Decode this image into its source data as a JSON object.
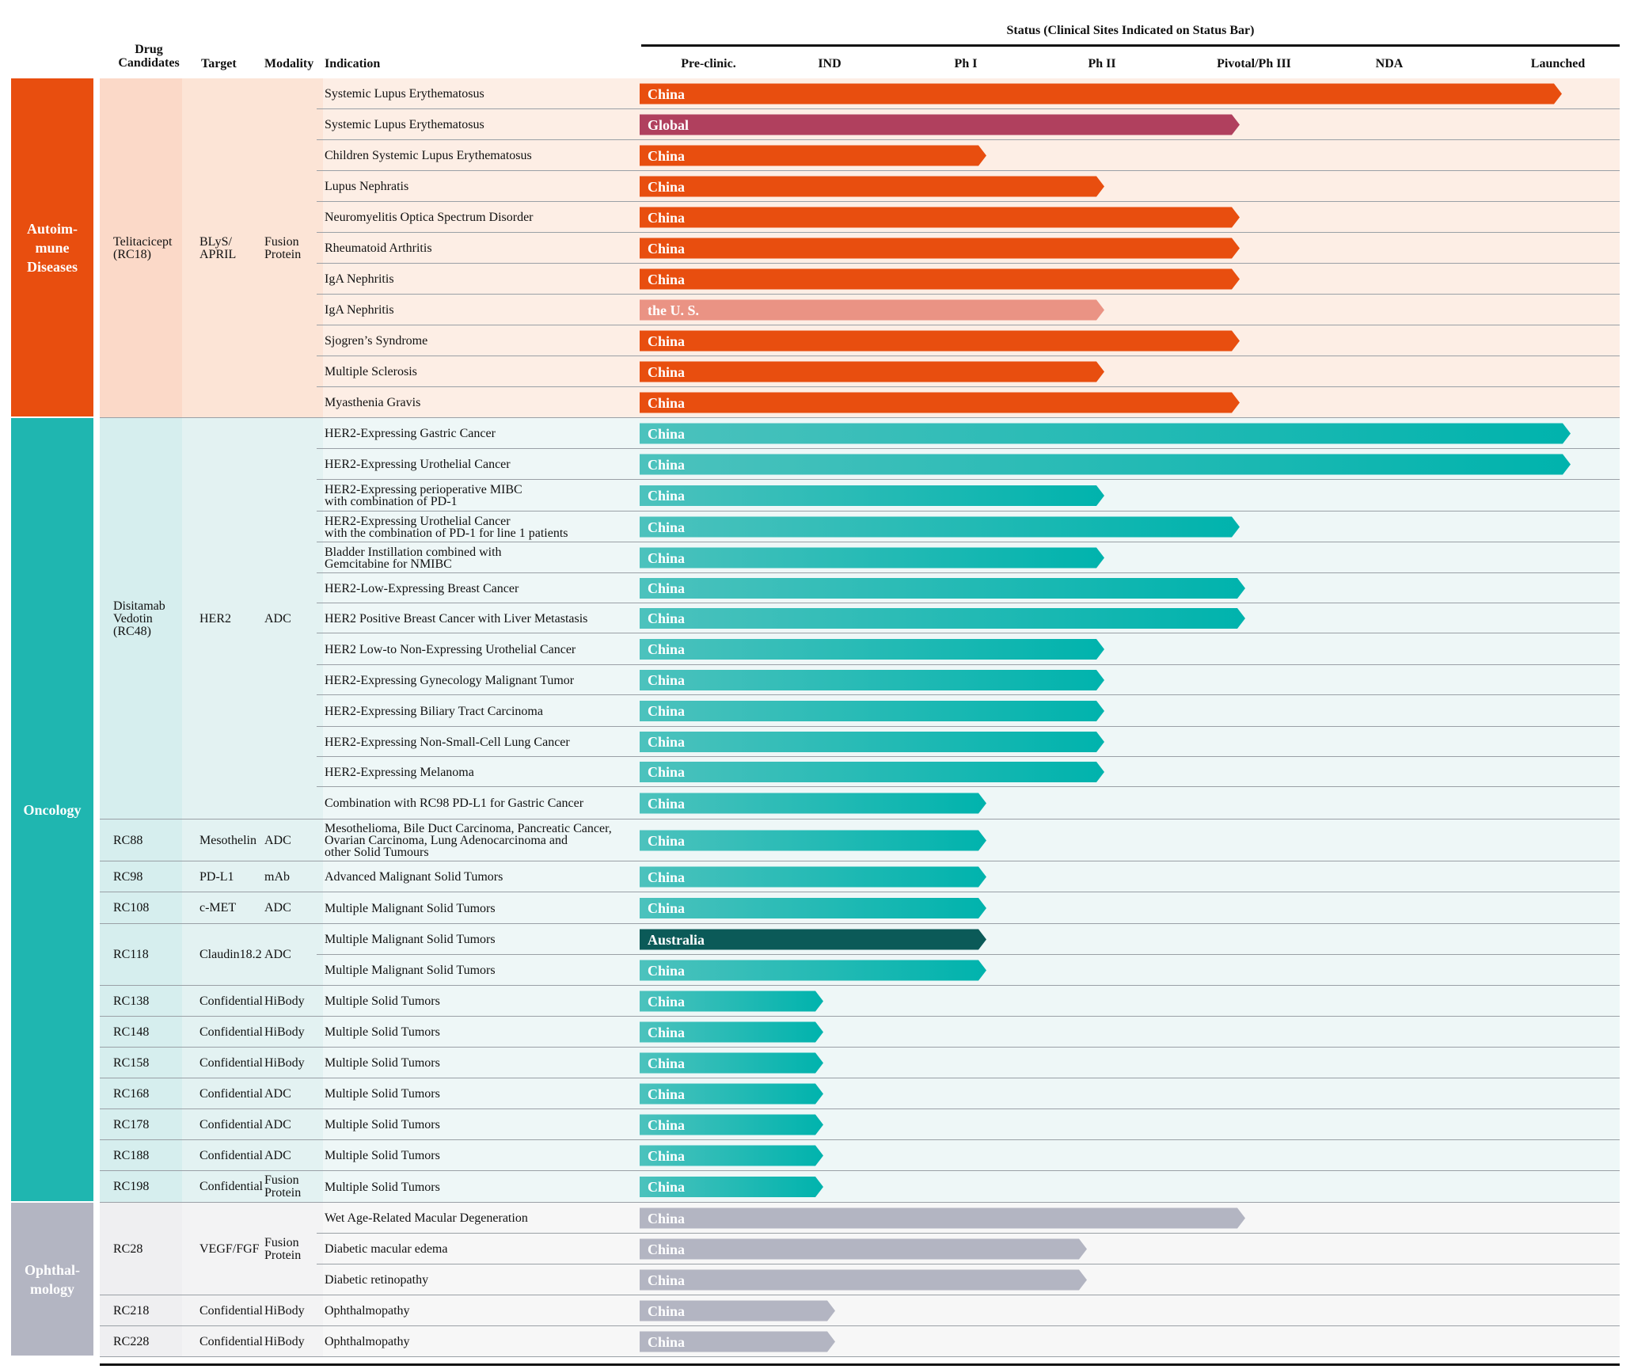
{
  "header": {
    "status_title": "Status (Clinical Sites Indicated on Status Bar)",
    "col_drug": "Drug\nCandidates",
    "col_target": "Target",
    "col_modality": "Modality",
    "col_indication": "Indication",
    "stages": [
      "Pre-clinic.",
      "IND",
      "Ph I",
      "Ph II",
      "Pivotal/Ph III",
      "NDA",
      "Launched"
    ]
  },
  "categories": [
    {
      "name": "Autoim-\nmune\nDiseases",
      "color": "#e84e0f",
      "band_color": "#fdeee5",
      "col_color": "#fbd9c8"
    },
    {
      "name": "Oncology",
      "color": "#1fb6b0",
      "band_color": "#eef7f7",
      "col_color": "#d6eeee"
    },
    {
      "name": "Ophthal-\nmology",
      "color": "#b3b5c2",
      "band_color": "#f7f7f7",
      "col_color": "#efeff1"
    }
  ],
  "drug_groups": [
    {
      "category": 0,
      "drug": "Telitacicept\n(RC18)",
      "target": "BLyS/\nAPRIL",
      "modality": "Fusion\nProtein",
      "rows": 11
    },
    {
      "category": 1,
      "drug": "Disitamab\nVedotin\n(RC48)",
      "target": "HER2",
      "modality": "ADC",
      "rows": 13
    },
    {
      "category": 1,
      "drug": "RC88",
      "target": "Mesothelin",
      "modality": "ADC",
      "rows": 1
    },
    {
      "category": 1,
      "drug": "RC98",
      "target": "PD-L1",
      "modality": "mAb",
      "rows": 1
    },
    {
      "category": 1,
      "drug": "RC108",
      "target": "c-MET",
      "modality": "ADC",
      "rows": 1
    },
    {
      "category": 1,
      "drug": "RC118",
      "target": "Claudin18.2",
      "modality": "ADC",
      "rows": 2
    },
    {
      "category": 1,
      "drug": "RC138",
      "target": "Confidential",
      "modality": "HiBody",
      "rows": 1
    },
    {
      "category": 1,
      "drug": "RC148",
      "target": "Confidential",
      "modality": "HiBody",
      "rows": 1
    },
    {
      "category": 1,
      "drug": "RC158",
      "target": "Confidential",
      "modality": "HiBody",
      "rows": 1
    },
    {
      "category": 1,
      "drug": "RC168",
      "target": "Confidential",
      "modality": "ADC",
      "rows": 1
    },
    {
      "category": 1,
      "drug": "RC178",
      "target": "Confidential",
      "modality": "ADC",
      "rows": 1
    },
    {
      "category": 1,
      "drug": "RC188",
      "target": "Confidential",
      "modality": "ADC",
      "rows": 1
    },
    {
      "category": 1,
      "drug": "RC198",
      "target": "Confidential",
      "modality": "Fusion\nProtein",
      "rows": 1
    },
    {
      "category": 2,
      "drug": "RC28",
      "target": "VEGF/FGF",
      "modality": "Fusion\nProtein",
      "rows": 3
    },
    {
      "category": 2,
      "drug": "RC218",
      "target": "Confidential",
      "modality": "HiBody",
      "rows": 1
    },
    {
      "category": 2,
      "drug": "RC228",
      "target": "Confidential",
      "modality": "HiBody",
      "rows": 1
    }
  ],
  "rows": [
    {
      "indication": "Systemic Lupus Erythematosus",
      "site": "China",
      "stage_end": 6.0,
      "color": "#e84e0f"
    },
    {
      "indication": "Systemic Lupus Erythematosus",
      "site": "Global",
      "stage_end": 4.0,
      "color": "#b0405e"
    },
    {
      "indication": "Children Systemic Lupus Erythematosus",
      "site": "China",
      "stage_end": 2.0,
      "color": "#e84e0f"
    },
    {
      "indication": "Lupus Nephratis",
      "site": "China",
      "stage_end": 3.0,
      "color": "#e84e0f"
    },
    {
      "indication": "Neuromyelitis Optica Spectrum Disorder",
      "site": "China",
      "stage_end": 4.0,
      "color": "#e84e0f"
    },
    {
      "indication": "Rheumatoid Arthritis",
      "site": "China",
      "stage_end": 4.0,
      "color": "#e84e0f"
    },
    {
      "indication": "IgA Nephritis",
      "site": "China",
      "stage_end": 4.0,
      "color": "#e84e0f"
    },
    {
      "indication": "IgA Nephritis",
      "site": "the U. S.",
      "stage_end": 3.0,
      "color": "#ea9384"
    },
    {
      "indication": "Sjogren’s Syndrome",
      "site": "China",
      "stage_end": 4.0,
      "color": "#e84e0f"
    },
    {
      "indication": "Multiple Sclerosis",
      "site": "China",
      "stage_end": 3.0,
      "color": "#e84e0f"
    },
    {
      "indication": "Myasthenia Gravis",
      "site": "China",
      "stage_end": 4.0,
      "color": "#e84e0f"
    },
    {
      "indication": "HER2-Expressing Gastric Cancer",
      "site": "China",
      "stage_end": 6.05,
      "color": "#1fb6b0"
    },
    {
      "indication": "HER2-Expressing Urothelial Cancer",
      "site": "China",
      "stage_end": 6.05,
      "color": "#1fb6b0"
    },
    {
      "indication": "HER2-Expressing perioperative MIBC\nwith combination of PD-1",
      "site": "China",
      "stage_end": 3.0,
      "color": "#1fb6b0"
    },
    {
      "indication": "HER2-Expressing Urothelial Cancer\nwith the combination of PD-1 for line 1 patients",
      "site": "China",
      "stage_end": 4.0,
      "color": "#1fb6b0"
    },
    {
      "indication": "Bladder Instillation combined with\nGemcitabine for NMIBC",
      "site": "China",
      "stage_end": 3.0,
      "color": "#1fb6b0"
    },
    {
      "indication": "HER2-Low-Expressing Breast Cancer",
      "site": "China",
      "stage_end": 4.05,
      "color": "#1fb6b0"
    },
    {
      "indication": "HER2 Positive Breast Cancer with Liver Metastasis",
      "site": "China",
      "stage_end": 4.05,
      "color": "#1fb6b0"
    },
    {
      "indication": "HER2 Low-to Non-Expressing Urothelial Cancer",
      "site": "China",
      "stage_end": 3.0,
      "color": "#1fb6b0"
    },
    {
      "indication": "HER2-Expressing Gynecology Malignant Tumor",
      "site": "China",
      "stage_end": 3.0,
      "color": "#1fb6b0"
    },
    {
      "indication": "HER2-Expressing Biliary Tract Carcinoma",
      "site": "China",
      "stage_end": 3.0,
      "color": "#1fb6b0"
    },
    {
      "indication": "HER2-Expressing Non-Small-Cell Lung Cancer",
      "site": "China",
      "stage_end": 3.0,
      "color": "#1fb6b0"
    },
    {
      "indication": "HER2-Expressing Melanoma",
      "site": "China",
      "stage_end": 3.0,
      "color": "#1fb6b0"
    },
    {
      "indication": "Combination with RC98 PD-L1 for Gastric Cancer",
      "site": "China",
      "stage_end": 2.0,
      "color": "#1fb6b0"
    },
    {
      "indication": "Mesothelioma, Bile Duct Carcinoma, Pancreatic Cancer,\nOvarian Carcinoma, Lung Adenocarcinoma and\nother Solid Tumours",
      "site": "China",
      "stage_end": 2.0,
      "color": "#1fb6b0"
    },
    {
      "indication": "Advanced Malignant Solid Tumors",
      "site": "China",
      "stage_end": 2.0,
      "color": "#1fb6b0"
    },
    {
      "indication": "Multiple Malignant Solid Tumors",
      "site": "China",
      "stage_end": 2.0,
      "color": "#1fb6b0"
    },
    {
      "indication": "Multiple Malignant Solid Tumors",
      "site": "Australia",
      "stage_end": 2.0,
      "color": "#0b5a58"
    },
    {
      "indication": "Multiple Malignant Solid Tumors",
      "site": "China",
      "stage_end": 2.0,
      "color": "#1fb6b0"
    },
    {
      "indication": "Multiple Solid Tumors",
      "site": "China",
      "stage_end": 0.85,
      "color": "#1fb6b0"
    },
    {
      "indication": "Multiple Solid Tumors",
      "site": "China",
      "stage_end": 0.85,
      "color": "#1fb6b0"
    },
    {
      "indication": "Multiple Solid Tumors",
      "site": "China",
      "stage_end": 0.85,
      "color": "#1fb6b0"
    },
    {
      "indication": "Multiple Solid Tumors",
      "site": "China",
      "stage_end": 0.85,
      "color": "#1fb6b0"
    },
    {
      "indication": "Multiple Solid Tumors",
      "site": "China",
      "stage_end": 0.85,
      "color": "#1fb6b0"
    },
    {
      "indication": "Multiple Solid Tumors",
      "site": "China",
      "stage_end": 0.85,
      "color": "#1fb6b0"
    },
    {
      "indication": "Multiple Solid Tumors",
      "site": "China",
      "stage_end": 0.85,
      "color": "#1fb6b0"
    },
    {
      "indication": "Wet Age-Related Macular Degeneration",
      "site": "China",
      "stage_end": 4.05,
      "color": "#b3b5c2"
    },
    {
      "indication": "Diabetic macular edema",
      "site": "China",
      "stage_end": 2.9,
      "color": "#b3b5c2"
    },
    {
      "indication": "Diabetic retinopathy",
      "site": "China",
      "stage_end": 2.9,
      "color": "#b3b5c2"
    },
    {
      "indication": "Ophthalmopathy",
      "site": "China",
      "stage_end": 0.95,
      "color": "#b3b5c2"
    },
    {
      "indication": "Ophthalmopathy",
      "site": "China",
      "stage_end": 0.95,
      "color": "#b3b5c2"
    }
  ]
}
